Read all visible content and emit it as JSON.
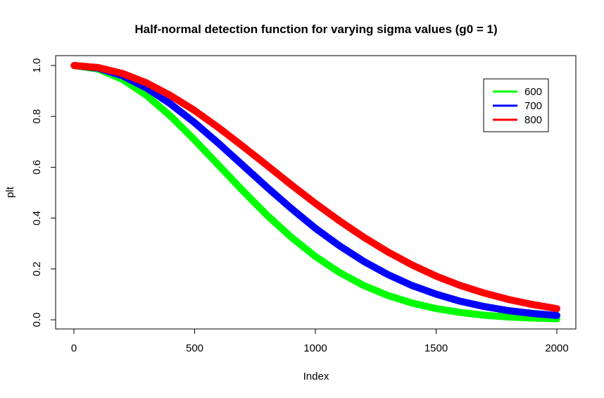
{
  "chart_data": {
    "type": "line",
    "title": "Half-normal detection function for varying sigma values (g0 = 1)",
    "xlabel": "Index",
    "ylabel": "plt",
    "xlim": [
      0,
      2000
    ],
    "ylim": [
      0,
      1
    ],
    "x_ticks": [
      "0",
      "500",
      "1000",
      "1500",
      "2000"
    ],
    "y_ticks": [
      "0.0",
      "0.2",
      "0.4",
      "0.6",
      "0.8",
      "1.0"
    ],
    "grid": false,
    "legend_position": "top-right",
    "x": [
      1,
      100,
      200,
      300,
      400,
      500,
      600,
      700,
      800,
      900,
      1000,
      1100,
      1200,
      1300,
      1400,
      1500,
      1600,
      1700,
      1800,
      1900,
      2000
    ],
    "series": [
      {
        "name": "600",
        "color": "#00ff00",
        "sigma": 600,
        "values": [
          1.0,
          0.986,
          0.946,
          0.883,
          0.801,
          0.707,
          0.607,
          0.507,
          0.411,
          0.325,
          0.249,
          0.186,
          0.135,
          0.096,
          0.066,
          0.044,
          0.029,
          0.018,
          0.011,
          0.007,
          0.004
        ]
      },
      {
        "name": "700",
        "color": "#0000ff",
        "sigma": 700,
        "values": [
          1.0,
          0.99,
          0.96,
          0.912,
          0.849,
          0.775,
          0.693,
          0.607,
          0.521,
          0.438,
          0.36,
          0.291,
          0.23,
          0.178,
          0.135,
          0.101,
          0.073,
          0.052,
          0.036,
          0.025,
          0.017
        ]
      },
      {
        "name": "800",
        "color": "#ff0000",
        "sigma": 800,
        "values": [
          1.0,
          0.992,
          0.969,
          0.932,
          0.882,
          0.823,
          0.755,
          0.682,
          0.607,
          0.531,
          0.458,
          0.389,
          0.325,
          0.267,
          0.216,
          0.172,
          0.135,
          0.105,
          0.08,
          0.06,
          0.044
        ]
      }
    ]
  }
}
